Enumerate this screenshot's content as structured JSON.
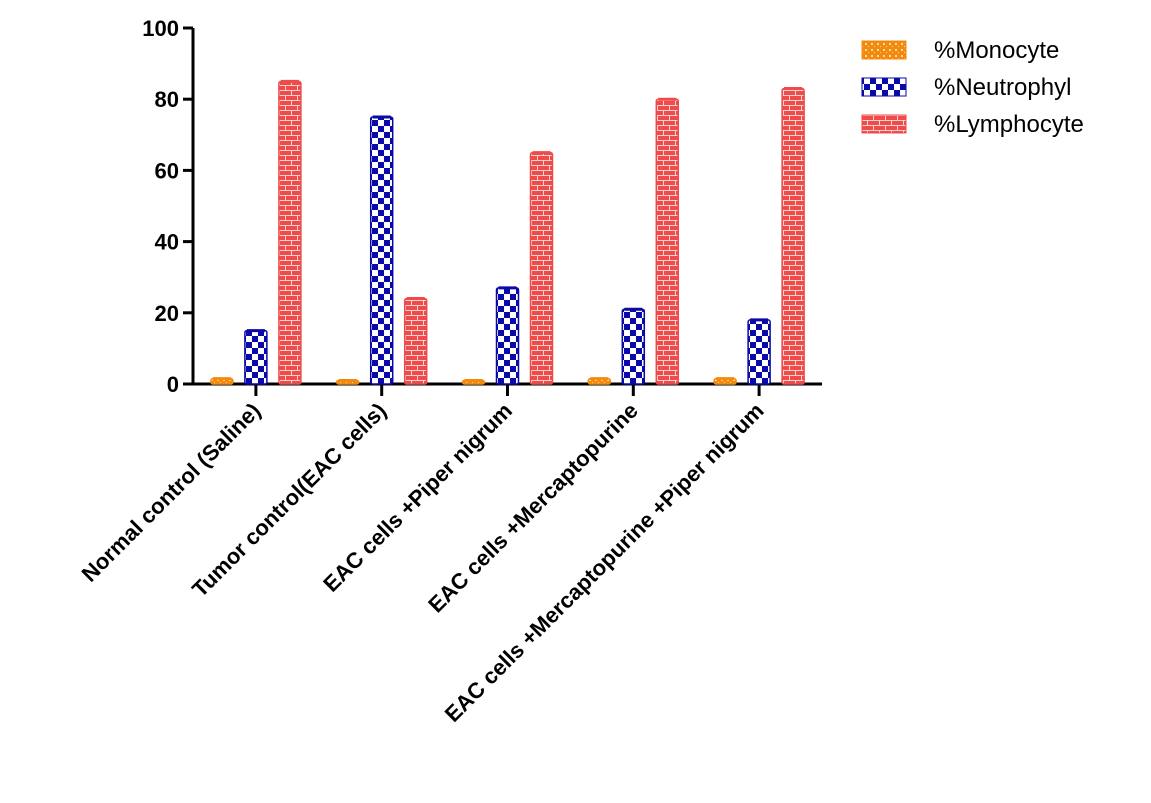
{
  "chart_data": {
    "type": "bar",
    "title": "",
    "xlabel": "",
    "ylabel": "",
    "ylim": [
      0,
      100
    ],
    "yticks": [
      0,
      20,
      40,
      60,
      80,
      100
    ],
    "legend_position": "top-right",
    "categories": [
      "Normal control (Saline)",
      "Tumor control(EAC cells)",
      "EAC cells +Piper nigrum",
      "EAC cells +Mercaptopurine",
      "EAC cells +Mercaptopurine +Piper nigrum"
    ],
    "series": [
      {
        "name": "%Monocyte",
        "values": [
          1.5,
          1,
          1,
          1.5,
          1.5
        ],
        "color": "#f28a10",
        "pattern": "dots"
      },
      {
        "name": "%Neutrophyl",
        "values": [
          15,
          75,
          27,
          21,
          18
        ],
        "color": "#0a0aa8",
        "pattern": "checker"
      },
      {
        "name": "%Lymphocyte",
        "values": [
          85,
          24,
          65,
          80,
          83
        ],
        "color": "#ee4b4b",
        "pattern": "brick"
      }
    ]
  }
}
